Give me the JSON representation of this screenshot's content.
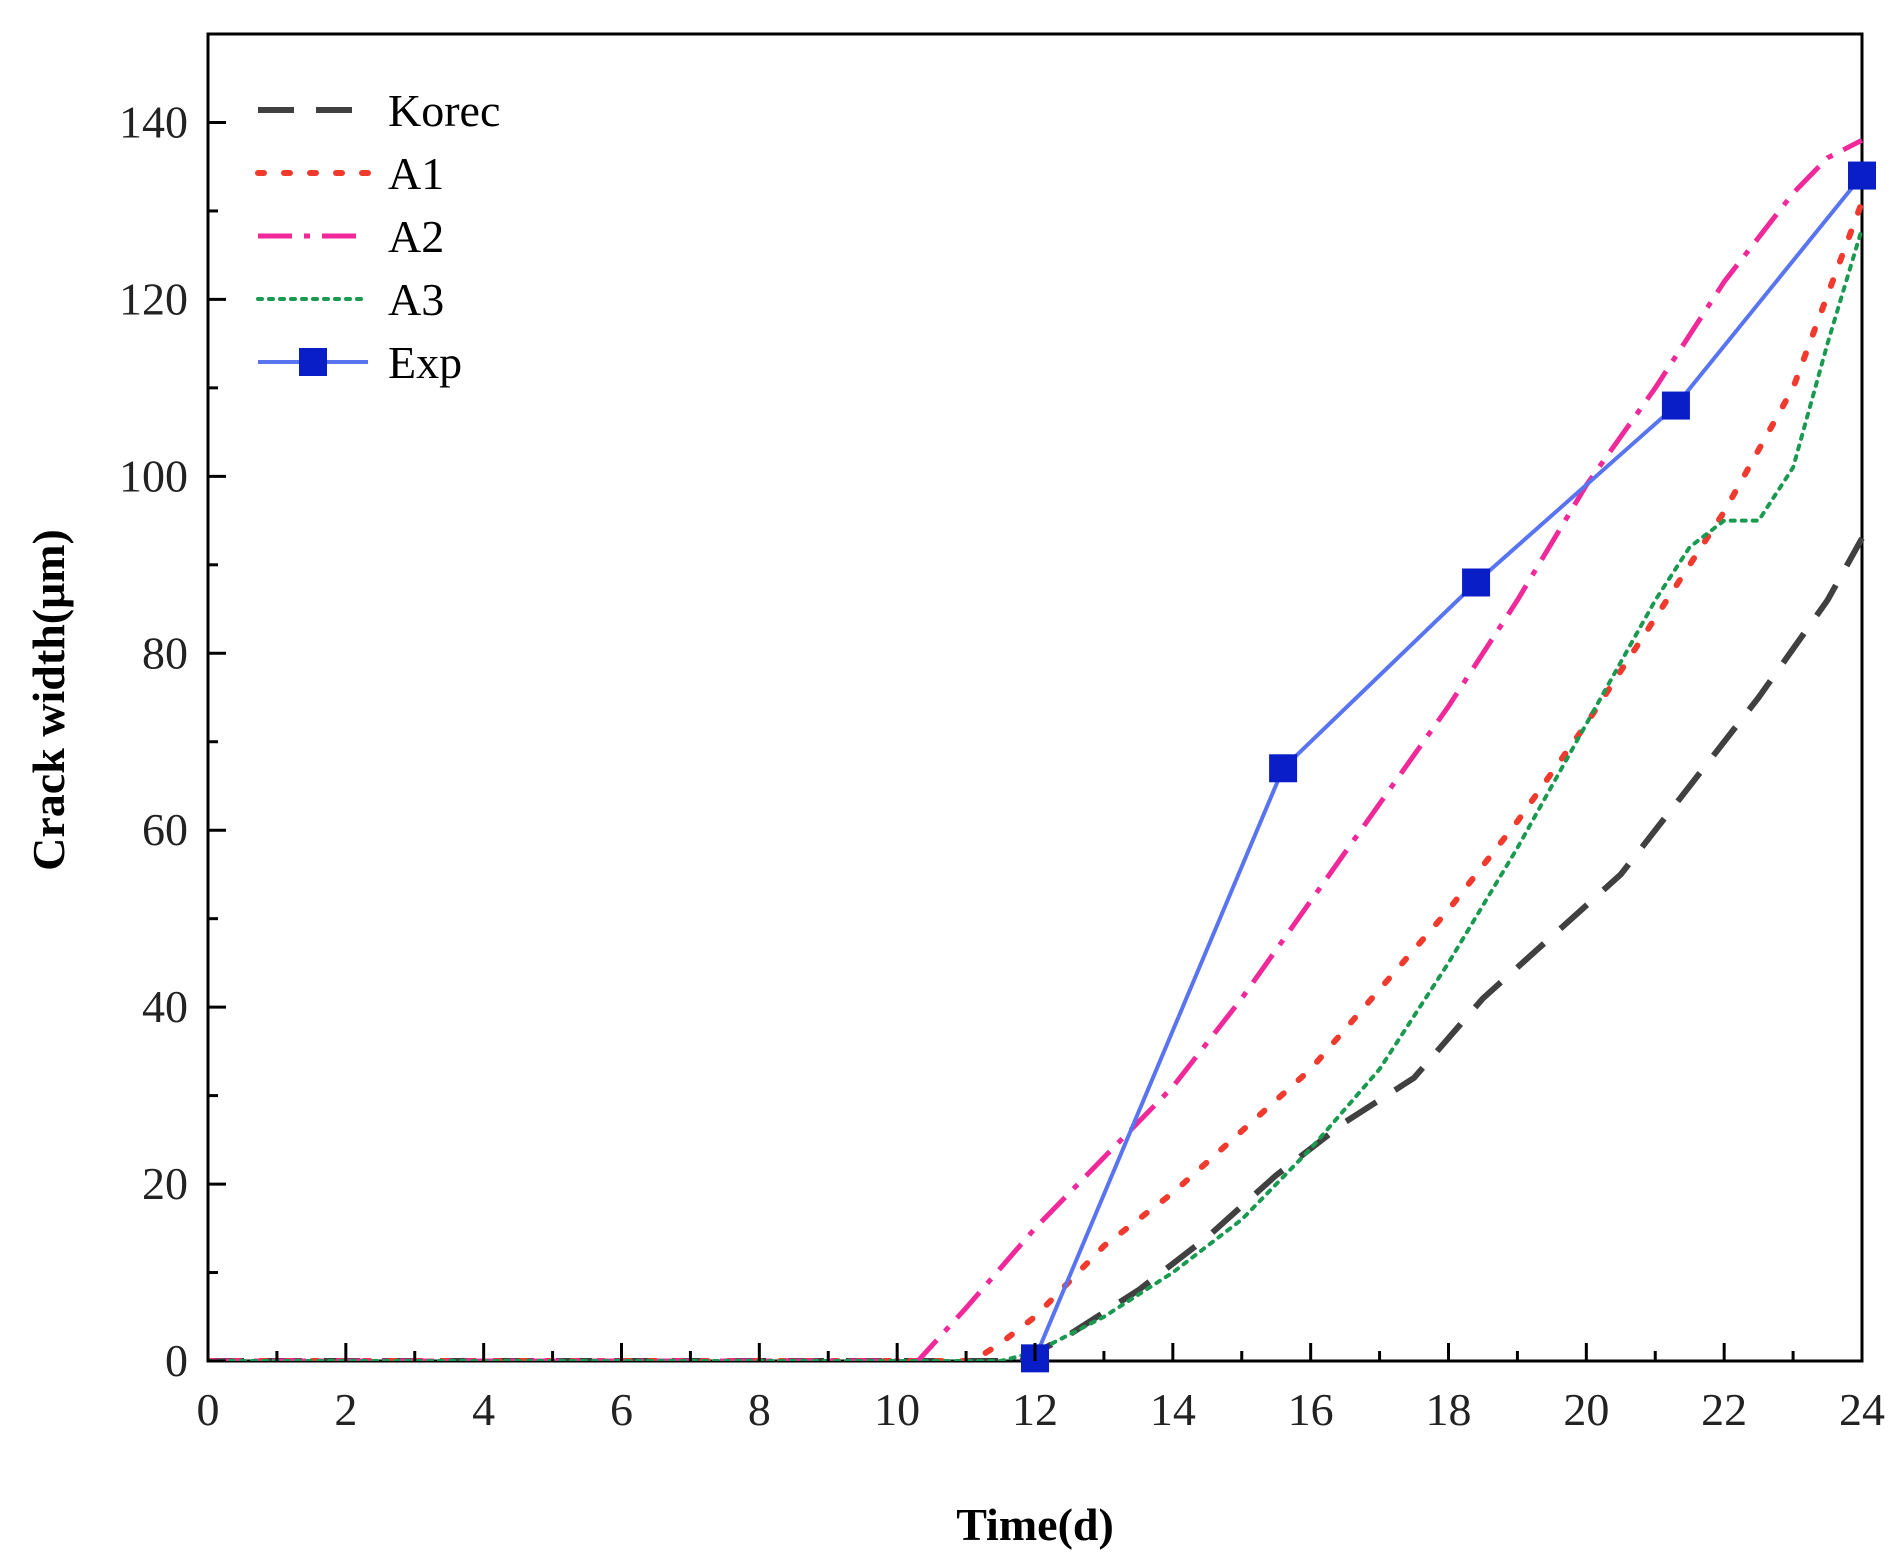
{
  "chart_data": {
    "type": "line",
    "xlabel": "Time(d)",
    "ylabel": "Crack width(μm)",
    "xlim": [
      0,
      24
    ],
    "ylim": [
      0,
      150
    ],
    "xticks": [
      0,
      2,
      4,
      6,
      8,
      10,
      12,
      14,
      16,
      18,
      20,
      22,
      24
    ],
    "yticks": [
      0,
      20,
      40,
      60,
      80,
      100,
      120,
      140
    ],
    "grid": false,
    "legend_position": "top-left",
    "series": [
      {
        "name": "Korec",
        "color": "#404040",
        "dash": "dashed",
        "marker": "none",
        "x": [
          0,
          11.8,
          12.5,
          13.5,
          14.5,
          15.5,
          16.5,
          17.5,
          18.5,
          19.5,
          20.5,
          21.5,
          22.5,
          23.5,
          24
        ],
        "y": [
          0,
          0,
          3,
          8,
          14,
          21,
          27,
          32,
          41,
          48,
          55,
          65,
          75,
          86,
          93
        ]
      },
      {
        "name": "A1",
        "color": "#f03a2e",
        "dash": "dotted",
        "marker": "none",
        "x": [
          0,
          11.1,
          11.5,
          12,
          13,
          14,
          15,
          16,
          17,
          18,
          19,
          20,
          21,
          22,
          23,
          24
        ],
        "y": [
          0,
          0,
          2,
          5,
          13,
          19,
          26,
          33,
          42,
          51,
          61,
          72,
          84,
          96,
          110,
          131
        ]
      },
      {
        "name": "A2",
        "color": "#f0289a",
        "dash": "dash-dot",
        "marker": "none",
        "x": [
          0,
          10.3,
          11,
          12,
          13,
          14,
          15,
          16,
          17,
          18,
          19,
          20,
          21,
          22,
          23,
          23.5,
          24
        ],
        "y": [
          0,
          0,
          6,
          15,
          23,
          31,
          41,
          52,
          63,
          74,
          86,
          99,
          110,
          122,
          132,
          136,
          138
        ]
      },
      {
        "name": "A3",
        "color": "#1a9a50",
        "dash": "dotted-fine",
        "marker": "none",
        "x": [
          0,
          11.5,
          12,
          13,
          14,
          15,
          16,
          17,
          18,
          19,
          20,
          21,
          21.5,
          22,
          22.5,
          23,
          23.5,
          24
        ],
        "y": [
          0,
          0,
          1,
          5,
          10,
          16,
          24,
          33,
          45,
          58,
          72,
          86,
          92,
          95,
          95,
          101,
          115,
          128
        ]
      },
      {
        "name": "Exp",
        "color": "#5874f0",
        "marker_color": "#0a1ec8",
        "dash": "solid",
        "marker": "square",
        "x": [
          12,
          15.6,
          18.4,
          21.3,
          24
        ],
        "y": [
          0.3,
          67,
          88,
          108,
          134
        ]
      }
    ]
  }
}
